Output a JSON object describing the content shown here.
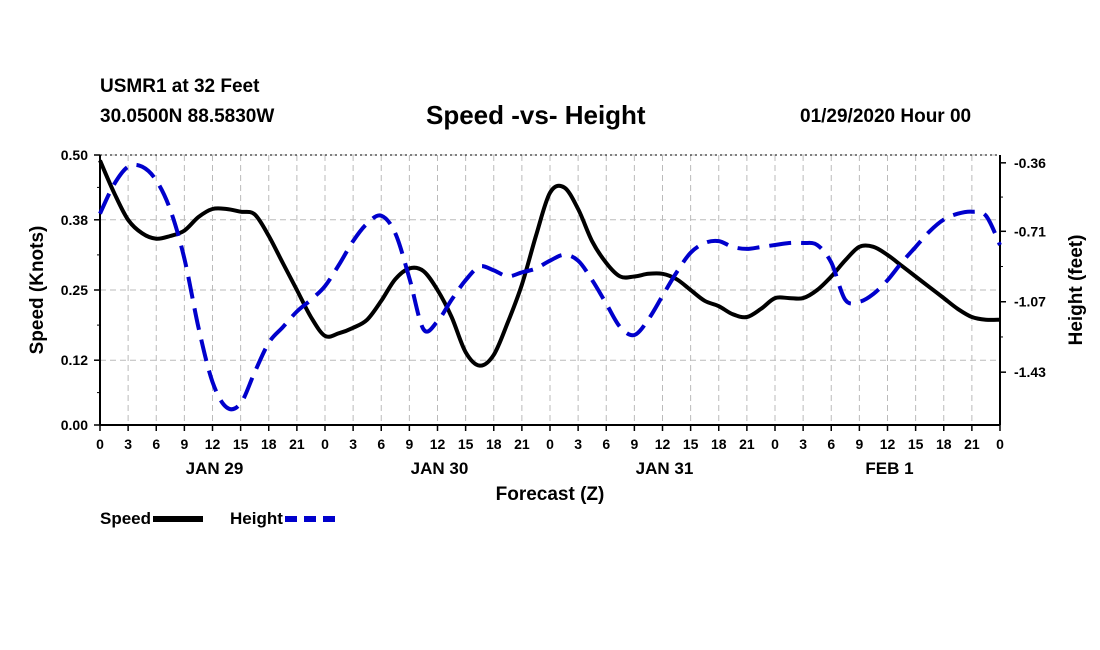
{
  "header": {
    "station": "USMR1 at 32 Feet",
    "coords": "30.0500N 88.5830W",
    "title": "Speed -vs- Height",
    "run": "01/29/2020 Hour 00"
  },
  "chart_data": {
    "type": "line",
    "title": "Speed -vs- Height",
    "xlabel": "Forecast (Z)",
    "ylabel": "Speed (Knots)",
    "y2label": "Height (feet)",
    "x_hours": [
      0,
      1.5,
      3,
      4.5,
      6,
      7.5,
      9,
      10.5,
      12,
      13.5,
      15,
      16.5,
      18,
      19.5,
      21,
      22.5,
      24,
      25.5,
      27,
      28.5,
      30,
      31.5,
      33,
      34.5,
      36,
      37.5,
      39,
      40.5,
      42,
      43.5,
      45,
      46.5,
      48,
      49.5,
      51,
      52.5,
      54,
      55.5,
      57,
      58.5,
      60,
      61.5,
      63,
      64.5,
      66,
      67.5,
      69,
      70.5,
      72,
      73.5,
      75,
      76.5,
      78,
      79.5,
      81,
      82.5,
      84,
      85.5,
      87,
      88.5,
      90,
      91.5,
      93,
      94.5,
      96
    ],
    "series": [
      {
        "name": "Speed",
        "axis": "left",
        "color": "#000000",
        "style": "solid",
        "values": [
          0.49,
          0.43,
          0.38,
          0.355,
          0.345,
          0.35,
          0.36,
          0.385,
          0.4,
          0.4,
          0.395,
          0.39,
          0.35,
          0.3,
          0.25,
          0.2,
          0.165,
          0.17,
          0.18,
          0.195,
          0.23,
          0.27,
          0.29,
          0.285,
          0.25,
          0.2,
          0.135,
          0.11,
          0.13,
          0.19,
          0.26,
          0.35,
          0.43,
          0.44,
          0.4,
          0.34,
          0.3,
          0.275,
          0.275,
          0.28,
          0.28,
          0.27,
          0.25,
          0.23,
          0.22,
          0.205,
          0.2,
          0.215,
          0.235,
          0.235,
          0.235,
          0.25,
          0.275,
          0.305,
          0.33,
          0.33,
          0.315,
          0.295,
          0.275,
          0.255,
          0.235,
          0.215,
          0.2,
          0.195,
          0.195
        ]
      },
      {
        "name": "Height",
        "axis": "right",
        "color": "#0000cc",
        "style": "dashed",
        "values": [
          -0.62,
          -0.47,
          -0.38,
          -0.38,
          -0.45,
          -0.6,
          -0.85,
          -1.2,
          -1.48,
          -1.61,
          -1.59,
          -1.43,
          -1.28,
          -1.2,
          -1.12,
          -1.06,
          -0.99,
          -0.88,
          -0.76,
          -0.67,
          -0.63,
          -0.72,
          -0.95,
          -1.21,
          -1.17,
          -1.06,
          -0.96,
          -0.89,
          -0.91,
          -0.94,
          -0.92,
          -0.9,
          -0.86,
          -0.83,
          -0.86,
          -0.96,
          -1.08,
          -1.2,
          -1.24,
          -1.16,
          -1.04,
          -0.92,
          -0.82,
          -0.77,
          -0.76,
          -0.79,
          -0.8,
          -0.79,
          -0.78,
          -0.77,
          -0.77,
          -0.78,
          -0.87,
          -1.06,
          -1.07,
          -1.03,
          -0.96,
          -0.87,
          -0.79,
          -0.71,
          -0.65,
          -0.62,
          -0.61,
          -0.63,
          -0.78
        ]
      }
    ],
    "left_axis": {
      "ylim": [
        0.0,
        0.5
      ],
      "ticks": [
        "0.00",
        "0.12",
        "0.25",
        "0.38",
        "0.50"
      ]
    },
    "right_axis": {
      "ylim": [
        -1.7,
        -0.32
      ],
      "ticks": [
        "-0.36",
        "-0.71",
        "-1.07",
        "-1.43"
      ],
      "tick_values": [
        -0.36,
        -0.71,
        -1.07,
        -1.43
      ]
    },
    "xlim": [
      0,
      96
    ],
    "x_tick_labels": [
      "0",
      "3",
      "6",
      "9",
      "12",
      "15",
      "18",
      "21",
      "0",
      "3",
      "6",
      "9",
      "12",
      "15",
      "18",
      "21",
      "0",
      "3",
      "6",
      "9",
      "12",
      "15",
      "18",
      "21",
      "0",
      "3",
      "6",
      "9",
      "12",
      "15",
      "18",
      "21",
      "0"
    ],
    "date_labels": [
      {
        "hour": 12,
        "label": "JAN 29"
      },
      {
        "hour": 36,
        "label": "JAN 30"
      },
      {
        "hour": 60,
        "label": "JAN 31"
      },
      {
        "hour": 84,
        "label": "FEB 1"
      }
    ],
    "grid": true,
    "legend": [
      {
        "label": "Speed",
        "color": "#000000",
        "style": "solid"
      },
      {
        "label": "Height",
        "color": "#0000cc",
        "style": "dashed"
      }
    ]
  }
}
